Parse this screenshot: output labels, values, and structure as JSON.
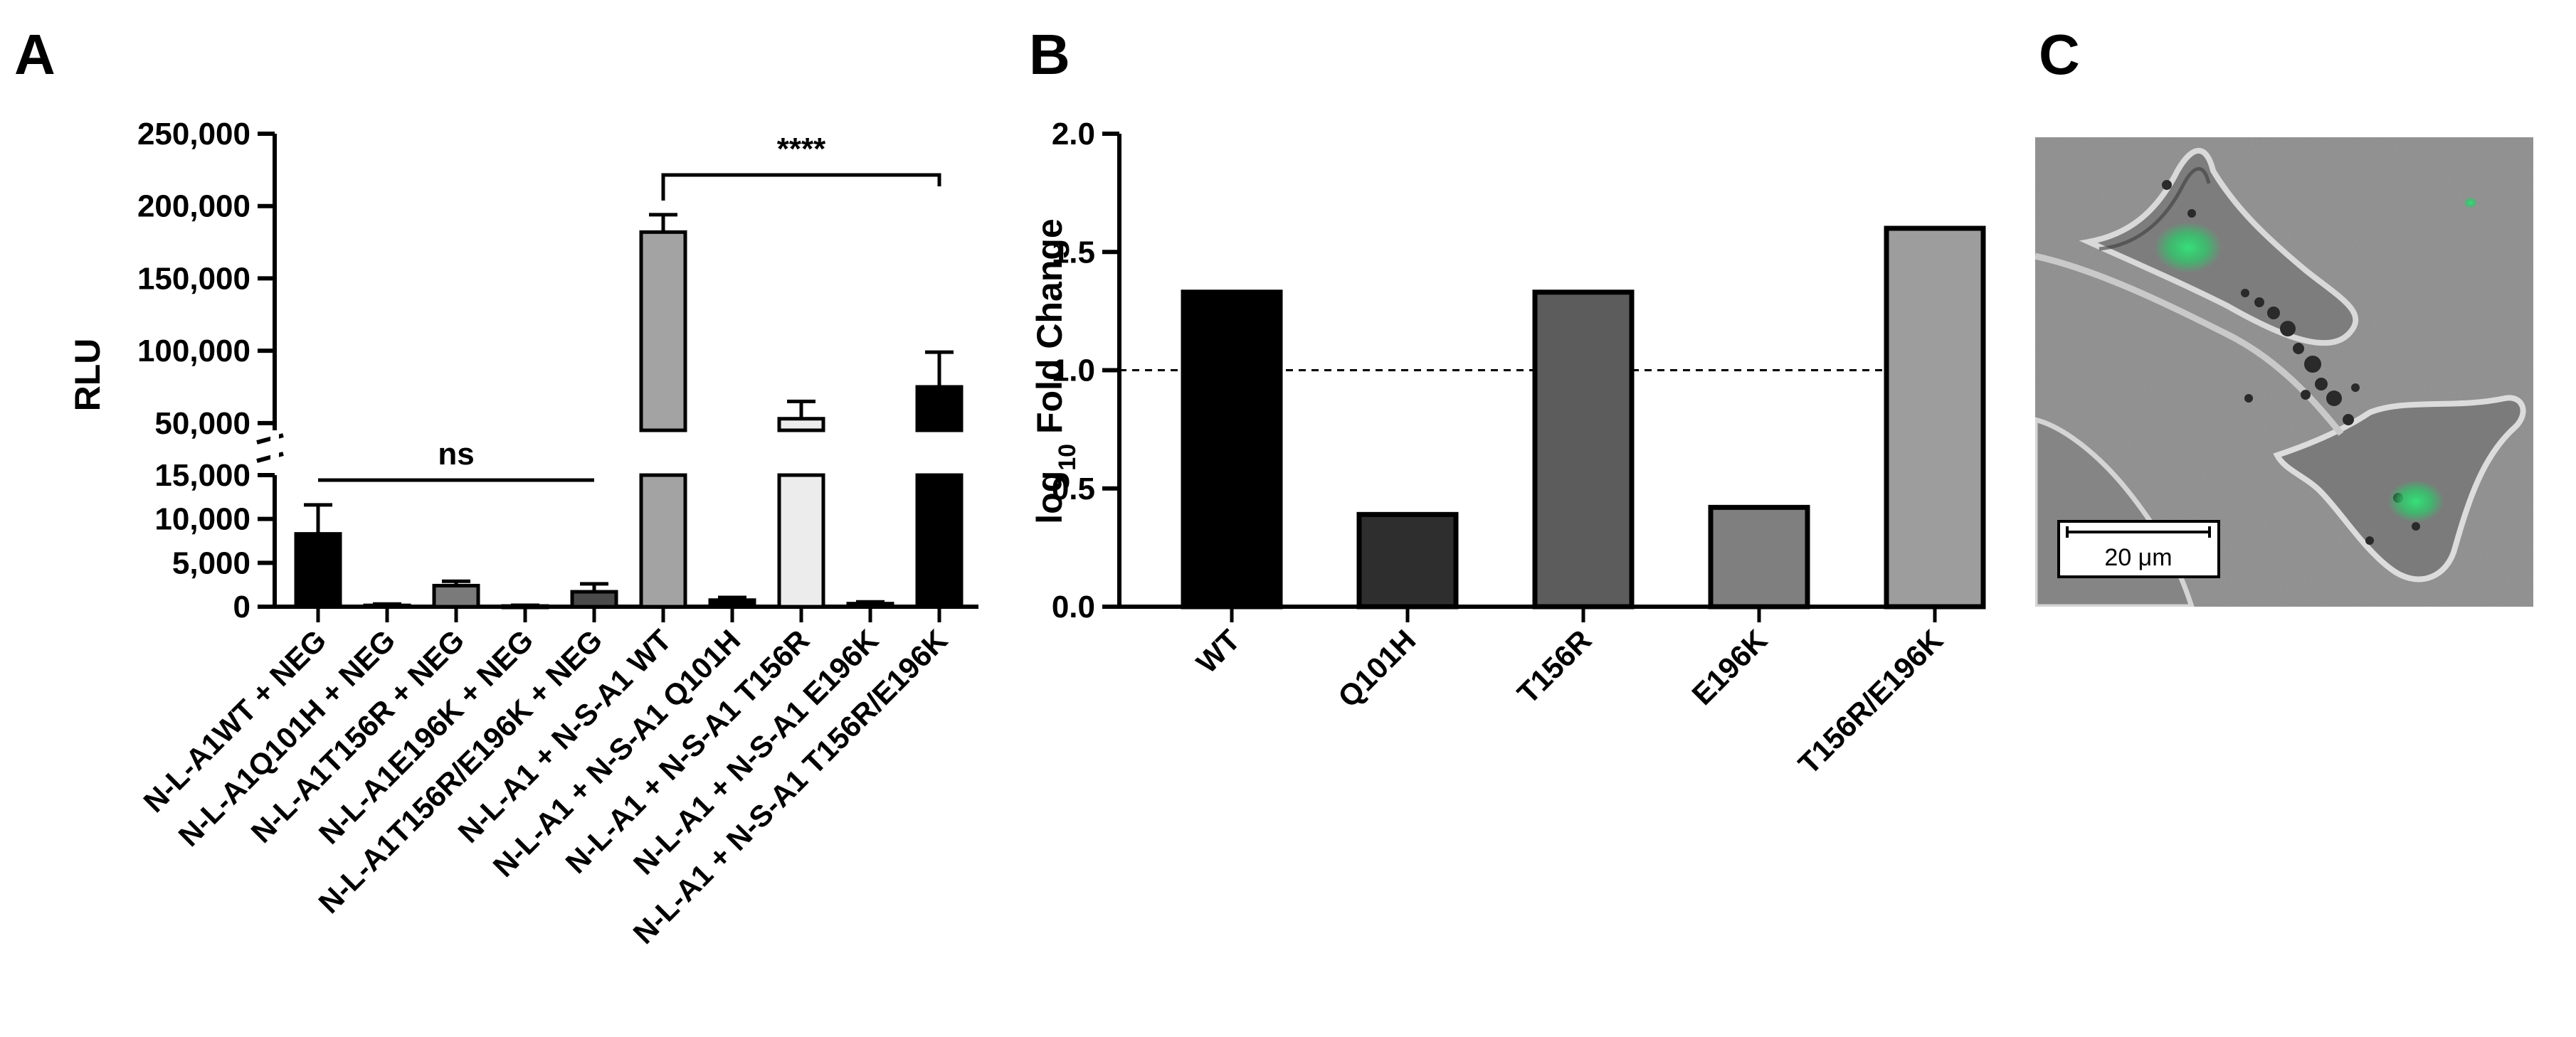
{
  "panels": {
    "a": {
      "letter": "A"
    },
    "b": {
      "letter": "B"
    },
    "c": {
      "letter": "C"
    }
  },
  "chart_data": [
    {
      "panel": "A",
      "type": "bar",
      "ylabel": "RLU",
      "y_axis_broken": true,
      "lower_segment": {
        "ylim": [
          0,
          15000
        ],
        "ticks": [
          0,
          5000,
          10000,
          15000
        ],
        "tick_labels": [
          "0",
          "5,000",
          "10,000",
          "15,000"
        ]
      },
      "upper_segment": {
        "ylim": [
          45000,
          250000
        ],
        "ticks": [
          50000,
          100000,
          150000,
          200000,
          250000
        ],
        "tick_labels": [
          "50,000",
          "100,000",
          "150,000",
          "200,000",
          "250,000"
        ]
      },
      "categories": [
        "N-L-A1WT + NEG",
        "N-L-A1Q101H + NEG",
        "N-L-A1T156R + NEG",
        "N-L-A1E196K + NEG",
        "N-L-A1T156R/E196K + NEG",
        "N-L-A1 + N-S-A1 WT",
        "N-L-A1 + N-S-A1 Q101H",
        "N-L-A1 + N-S-A1 T156R",
        "N-L-A1 + N-S-A1 E196K",
        "N-L-A1 + N-S-A1 T156R/E196K"
      ],
      "values": [
        8300,
        150,
        2400,
        80,
        1700,
        182000,
        750,
        53000,
        350,
        75000
      ],
      "errors": [
        3300,
        150,
        500,
        80,
        900,
        12000,
        300,
        12000,
        200,
        24000
      ],
      "bar_colors": [
        "#000000",
        "#000000",
        "#7a7a7a",
        "#000000",
        "#4a4a4a",
        "#a3a3a3",
        "#000000",
        "#ececec",
        "#000000",
        "#000000"
      ],
      "annotations": [
        {
          "label": "ns",
          "from": 0,
          "to": 4
        },
        {
          "label": "****",
          "from": 5,
          "to": 9
        }
      ]
    },
    {
      "panel": "B",
      "type": "bar",
      "ylabel_main": "log",
      "ylabel_sub": "10",
      "ylabel_rest": " Fold Change",
      "ylim": [
        0,
        2.0
      ],
      "ticks": [
        0,
        0.5,
        1.0,
        1.5,
        2.0
      ],
      "tick_labels": [
        "0.0",
        "0.5",
        "1.0",
        "1.5",
        "2.0"
      ],
      "categories": [
        "WT",
        "Q101H",
        "T156R",
        "E196K",
        "T156R/E196K"
      ],
      "values": [
        1.33,
        0.39,
        1.33,
        0.42,
        1.6
      ],
      "bar_colors": [
        "#000000",
        "#2e2e2e",
        "#5c5c5c",
        "#7f7f7f",
        "#9d9d9d"
      ],
      "reference_line": 1.0
    }
  ],
  "micrograph": {
    "scale_bar_label": "20 μm"
  }
}
